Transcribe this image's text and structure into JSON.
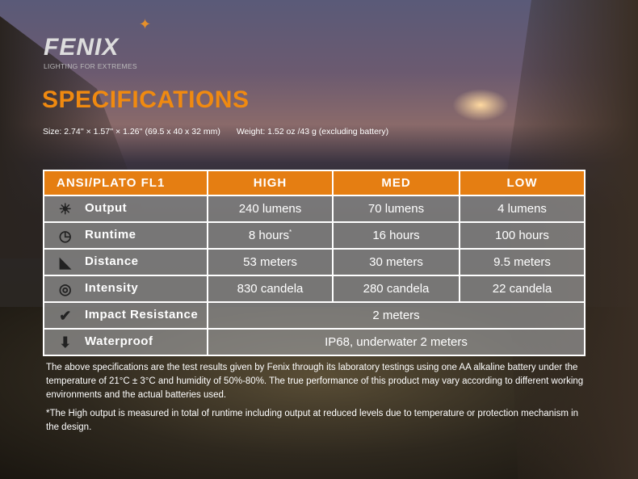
{
  "brand": {
    "logo": "FENIX",
    "tagline": "LIGHTING FOR EXTREMES"
  },
  "title": "SPECIFICATIONS",
  "size": "Size: 2.74'' × 1.57'' × 1.26'' (69.5 x 40 x 32 mm)",
  "weight": "Weight: 1.52 oz /43 g (excluding battery)",
  "table": {
    "headers": [
      "ANSI/PLATO FL1",
      "HIGH",
      "MED",
      "LOW"
    ],
    "rows": [
      {
        "icon": "sun-burst-icon",
        "label": "Output",
        "values": [
          "240 lumens",
          "70 lumens",
          "4 lumens"
        ]
      },
      {
        "icon": "clock-icon",
        "label": "Runtime",
        "values": [
          "8 hours",
          "16 hours",
          "100 hours"
        ],
        "high_mark": "*"
      },
      {
        "icon": "beam-distance-icon",
        "label": "Distance",
        "values": [
          "53 meters",
          "30 meters",
          "9.5 meters"
        ]
      },
      {
        "icon": "target-icon",
        "label": "Intensity",
        "values": [
          "830 candela",
          "280 candela",
          "22 candela"
        ]
      },
      {
        "icon": "impact-icon",
        "label": "Impact Resistance",
        "value": "2 meters"
      },
      {
        "icon": "waterproof-icon",
        "label": "Waterproof",
        "value": "IP68, underwater 2 meters"
      }
    ]
  },
  "notes": [
    "The above specifications are the test results given by Fenix through its laboratory testings using one AA alkaline battery under the temperature of 21°C ± 3°C and humidity of 50%-80%. The true performance of this product may vary according to different working environments and the actual batteries used.",
    "*The High output is measured in total of runtime including output at reduced levels due to temperature or protection mechanism in the design."
  ],
  "colors": {
    "accent": "#e57e12",
    "title": "#f08a10"
  }
}
